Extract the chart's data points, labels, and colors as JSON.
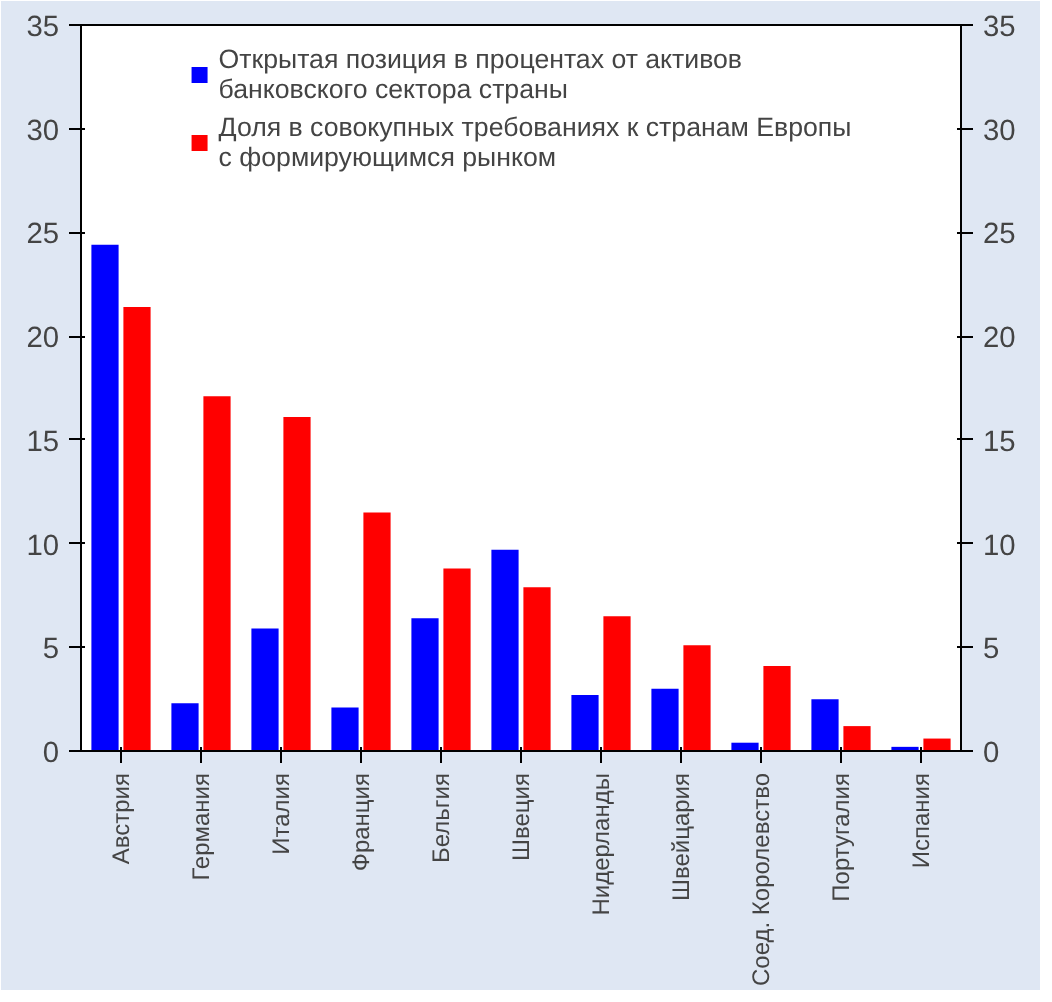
{
  "chart_data": {
    "type": "bar",
    "categories": [
      "Австрия",
      "Германия",
      "Италия",
      "Франция",
      "Бельгия",
      "Швеция",
      "Нидерланды",
      "Швейцария",
      "Соед. Королевство",
      "Португалия",
      "Испания"
    ],
    "series": [
      {
        "name": "Открытая позиция в процентах от активов банковского сектора страны",
        "color": "#0000ff",
        "values": [
          24.4,
          2.3,
          5.9,
          2.1,
          6.4,
          9.7,
          2.7,
          3.0,
          0.4,
          2.5,
          0.2
        ]
      },
      {
        "name": "Доля в совокупных требованиях к странам Европы с формирующимся рынком",
        "color": "#ff0000",
        "values": [
          21.4,
          17.1,
          16.1,
          11.5,
          8.8,
          7.9,
          6.5,
          5.1,
          4.1,
          1.2,
          0.6
        ]
      }
    ],
    "ylim": [
      0,
      35
    ],
    "yticks": [
      0,
      5,
      10,
      15,
      20,
      25,
      30,
      35
    ],
    "y2lim": [
      0,
      35
    ],
    "y2ticks": [
      0,
      5,
      10,
      15,
      20,
      25,
      30,
      35
    ],
    "grid": false,
    "legend": "top"
  }
}
